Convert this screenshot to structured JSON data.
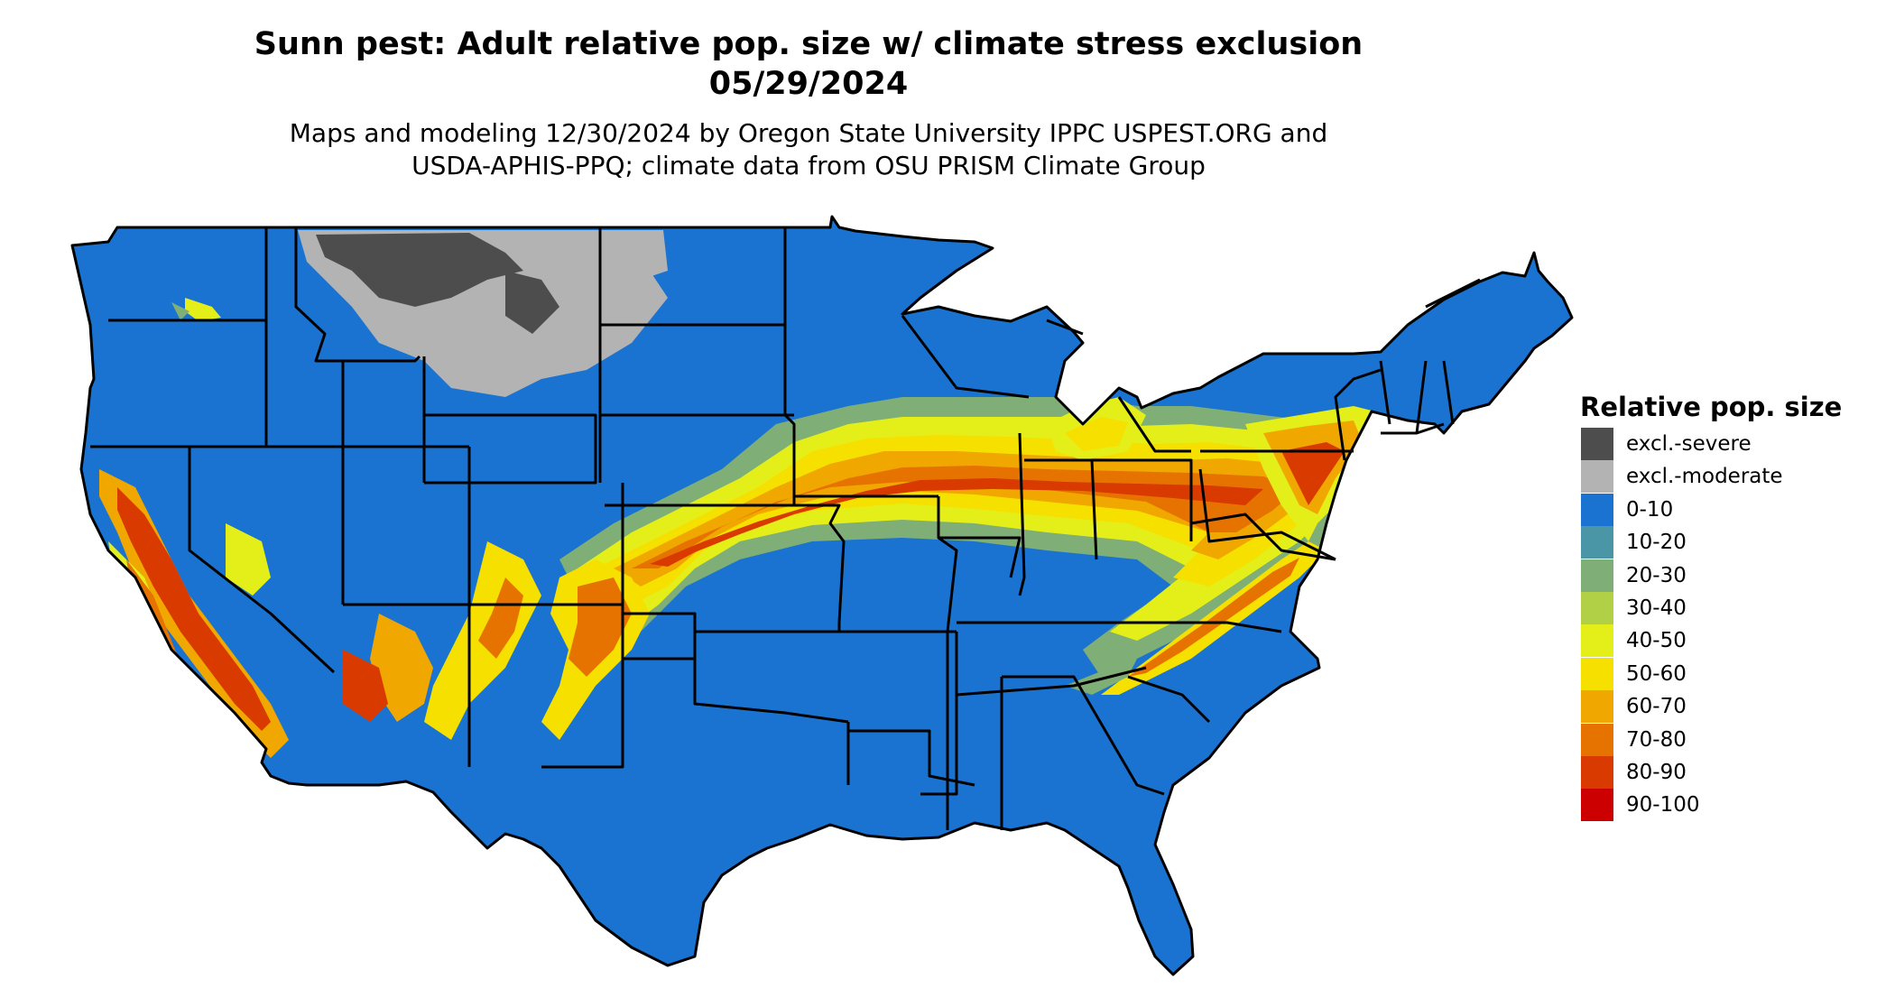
{
  "title_line1": "Sunn pest: Adult relative pop. size w/ climate stress exclusion",
  "title_line2": "05/29/2024",
  "subtitle_line1": "Maps and modeling 12/30/2024 by Oregon State University IPPC USPEST.ORG and",
  "subtitle_line2": "USDA-APHIS-PPQ; climate data from OSU PRISM Climate Group",
  "legend": {
    "title": "Relative pop. size",
    "items": [
      {
        "label": "excl.-severe",
        "color": "#4d4d4d"
      },
      {
        "label": "excl.-moderate",
        "color": "#b3b3b3"
      },
      {
        "label": "0-10",
        "color": "#1a73d0"
      },
      {
        "label": "10-20",
        "color": "#4a95a6"
      },
      {
        "label": "20-30",
        "color": "#7fae76"
      },
      {
        "label": "30-40",
        "color": "#b2d045"
      },
      {
        "label": "40-50",
        "color": "#e4ef1a"
      },
      {
        "label": "50-60",
        "color": "#f6e000"
      },
      {
        "label": "60-70",
        "color": "#f0a800"
      },
      {
        "label": "70-80",
        "color": "#e67300"
      },
      {
        "label": "80-90",
        "color": "#d93a00"
      },
      {
        "label": "90-100",
        "color": "#cc0000"
      }
    ]
  }
}
